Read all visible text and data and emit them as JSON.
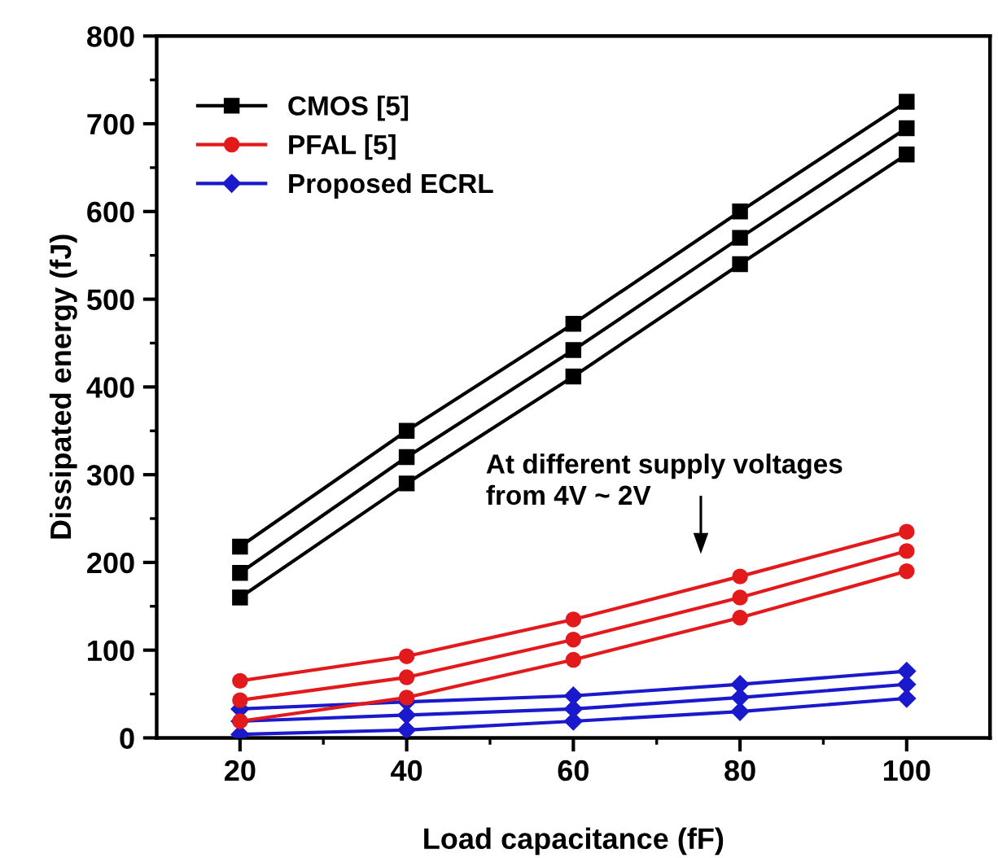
{
  "chart_data": {
    "type": "line",
    "xlabel": "Load capacitance (fF)",
    "ylabel": "Dissipated energy (fJ)",
    "x": [
      20,
      40,
      60,
      80,
      100
    ],
    "series": [
      {
        "name": "CMOS [5]",
        "color": "#000000",
        "marker": "square",
        "values": [
          218,
          350,
          472,
          600,
          725
        ]
      },
      {
        "color": "#000000",
        "marker": "square",
        "values": [
          188,
          320,
          442,
          570,
          695
        ]
      },
      {
        "color": "#000000",
        "marker": "square",
        "values": [
          160,
          290,
          412,
          540,
          665
        ]
      },
      {
        "name": "PFAL [5]",
        "color": "#e31a1c",
        "marker": "circle",
        "values": [
          65,
          93,
          135,
          184,
          235
        ]
      },
      {
        "color": "#e31a1c",
        "marker": "circle",
        "values": [
          43,
          69,
          112,
          160,
          213
        ]
      },
      {
        "color": "#e31a1c",
        "marker": "circle",
        "values": [
          19,
          46,
          89,
          137,
          190
        ]
      },
      {
        "name": "Proposed ECRL",
        "color": "#1a1acc",
        "marker": "diamond",
        "values": [
          33,
          41,
          48,
          61,
          76
        ]
      },
      {
        "color": "#1a1acc",
        "marker": "diamond",
        "values": [
          19,
          26,
          33,
          46,
          61
        ]
      },
      {
        "color": "#1a1acc",
        "marker": "diamond",
        "values": [
          4,
          9,
          19,
          30,
          45
        ]
      }
    ],
    "xlim": [
      10,
      110
    ],
    "ylim": [
      0,
      800
    ],
    "xticks": [
      20,
      {
        "value": 30,
        "label": null
      },
      40,
      {
        "value": 50,
        "label": null
      },
      60,
      {
        "value": 70,
        "label": null
      },
      80,
      {
        "value": 90,
        "label": null
      },
      100
    ],
    "yticks": [
      0,
      {
        "value": 50,
        "label": null
      },
      100,
      {
        "value": 150,
        "label": null
      },
      200,
      {
        "value": 250,
        "label": null
      },
      300,
      {
        "value": 350,
        "label": null
      },
      400,
      {
        "value": 450,
        "label": null
      },
      500,
      {
        "value": 550,
        "label": null
      },
      600,
      {
        "value": 650,
        "label": null
      },
      700,
      {
        "value": 750,
        "label": null
      },
      800
    ],
    "annotations": [
      "At different supply voltages\nfrom 4V ~ 2V"
    ],
    "legend": "top left",
    "grid": false,
    "line_style": "solid"
  }
}
